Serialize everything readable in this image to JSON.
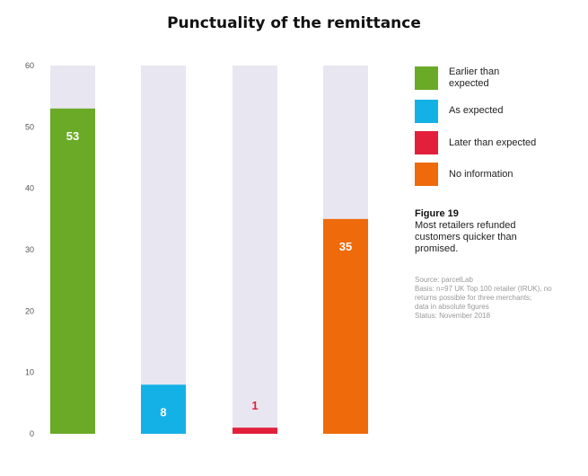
{
  "colors": {
    "background_bar": "#e8e7f1",
    "axis_text": "#555555",
    "earlier": "#6aaa27",
    "as_expected": "#14b1e7",
    "later": "#e3203c",
    "no_info": "#ee6a0a",
    "label_inside": "#ffffff"
  },
  "chart_data": {
    "type": "bar",
    "title": "Punctuality of the remittance",
    "xlabel": "",
    "ylabel": "",
    "ylim": [
      0,
      60
    ],
    "yticks": [
      0,
      10,
      20,
      30,
      40,
      50,
      60
    ],
    "categories": [
      "Earlier than expected",
      "As expected",
      "Later than expected",
      "No information"
    ],
    "values": [
      53,
      8,
      1,
      35
    ],
    "data_labels": [
      "53",
      "8",
      "1",
      "35"
    ],
    "grid": false,
    "legend_position": "right"
  },
  "legend": [
    {
      "label": "Earlier than expected",
      "color_key": "earlier"
    },
    {
      "label": "As expected",
      "color_key": "as_expected"
    },
    {
      "label": "Later than expected",
      "color_key": "later"
    },
    {
      "label": "No information",
      "color_key": "no_info"
    }
  ],
  "caption": {
    "figure_label": "Figure 19",
    "text": "Most retailers refunded customers quicker than promised."
  },
  "source": {
    "lines": [
      "Source: parcelLab",
      "Basis: n=97 UK Top 100 retailer (IRUK), no returns possible for three merchants;",
      "data in absolute figures",
      "Status: November 2018"
    ]
  }
}
